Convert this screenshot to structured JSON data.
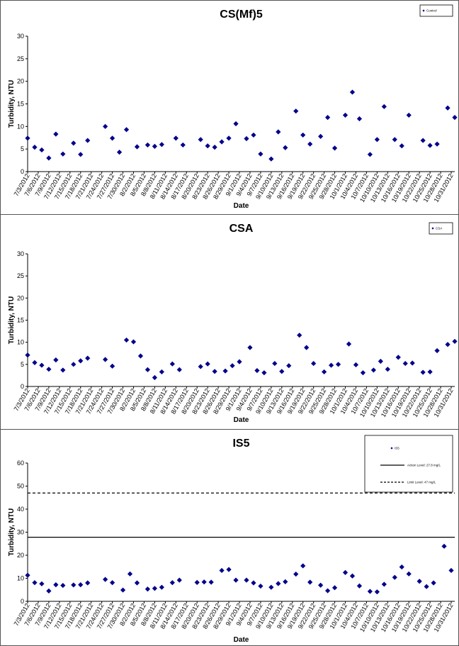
{
  "chart_data": [
    {
      "type": "scatter",
      "title": "CS(Mf)5",
      "xlabel": "Date",
      "ylabel": "Turbidity, NTU",
      "ylim": [
        0,
        30
      ],
      "yticks": [
        0,
        5,
        10,
        15,
        20,
        25,
        30
      ],
      "grid": false,
      "legend_position": "top-right",
      "x_tick_labels": [
        "7/3/2012",
        "7/6/2012",
        "7/9/2012",
        "7/12/2012",
        "7/15/2012",
        "7/18/2012",
        "7/21/2012",
        "7/24/2012",
        "7/27/2012",
        "7/30/2012",
        "8/2/2012",
        "8/5/2012",
        "8/8/2012",
        "8/11/2012",
        "8/14/2012",
        "8/17/2012",
        "8/20/2012",
        "8/23/2012",
        "8/26/2012",
        "8/29/2012",
        "9/1/2012",
        "9/4/2012",
        "9/7/2012",
        "9/10/2012",
        "9/13/2012",
        "9/16/2012",
        "9/19/2012",
        "9/22/2012",
        "9/25/2012",
        "9/28/2012",
        "10/1/2012",
        "10/4/2012",
        "10/7/2012",
        "10/10/2012",
        "10/13/2012",
        "10/16/2012",
        "10/19/2012",
        "10/22/2012",
        "10/25/2012",
        "10/28/2012",
        "10/31/2012"
      ],
      "series": [
        {
          "name": "Control",
          "color": "#00008b",
          "marker": "diamond",
          "x": [
            "7/3/2012",
            "7/5/2012",
            "7/7/2012",
            "7/9/2012",
            "7/11/2012",
            "7/13/2012",
            "7/16/2012",
            "7/18/2012",
            "7/20/2012",
            "7/25/2012",
            "7/27/2012",
            "7/29/2012",
            "7/31/2012",
            "8/3/2012",
            "8/6/2012",
            "8/8/2012",
            "8/10/2012",
            "8/14/2012",
            "8/16/2012",
            "8/21/2012",
            "8/23/2012",
            "8/25/2012",
            "8/27/2012",
            "8/29/2012",
            "8/31/2012",
            "9/3/2012",
            "9/5/2012",
            "9/7/2012",
            "9/10/2012",
            "9/12/2012",
            "9/14/2012",
            "9/17/2012",
            "9/19/2012",
            "9/21/2012",
            "9/24/2012",
            "9/26/2012",
            "9/28/2012",
            "10/1/2012",
            "10/3/2012",
            "10/5/2012",
            "10/8/2012",
            "10/10/2012",
            "10/12/2012",
            "10/15/2012",
            "10/17/2012",
            "10/19/2012",
            "10/23/2012",
            "10/25/2012",
            "10/27/2012",
            "10/30/2012",
            "11/1/2012"
          ],
          "y": [
            7.4,
            5.4,
            4.8,
            3.0,
            8.3,
            3.9,
            6.3,
            3.8,
            6.9,
            10.0,
            7.4,
            4.3,
            9.3,
            5.5,
            5.9,
            5.6,
            6.0,
            7.4,
            5.9,
            7.1,
            5.7,
            5.4,
            6.6,
            7.4,
            10.6,
            7.3,
            8.1,
            3.9,
            2.8,
            8.8,
            5.3,
            13.4,
            8.1,
            6.1,
            7.8,
            12.0,
            5.2,
            12.5,
            17.6,
            11.7,
            3.8,
            7.1,
            14.4,
            7.1,
            5.7,
            12.5,
            6.9,
            5.8,
            6.1,
            14.1,
            12.0
          ]
        }
      ]
    },
    {
      "type": "scatter",
      "title": "CSA",
      "xlabel": "Date",
      "ylabel": "Turbidity, NTU",
      "ylim": [
        0,
        30
      ],
      "yticks": [
        0,
        5,
        10,
        15,
        20,
        25,
        30
      ],
      "grid": false,
      "legend_position": "top-right",
      "x_tick_labels": [
        "7/3/2012",
        "7/6/2012",
        "7/9/2012",
        "7/12/2012",
        "7/15/2012",
        "7/18/2012",
        "7/21/2012",
        "7/24/2012",
        "7/27/2012",
        "7/30/2012",
        "8/2/2012",
        "8/5/2012",
        "8/8/2012",
        "8/11/2012",
        "8/14/2012",
        "8/17/2012",
        "8/20/2012",
        "8/23/2012",
        "8/26/2012",
        "8/29/2012",
        "9/1/2012",
        "9/4/2012",
        "9/7/2012",
        "9/10/2012",
        "9/13/2012",
        "9/16/2012",
        "9/19/2012",
        "9/22/2012",
        "9/25/2012",
        "9/28/2012",
        "10/1/2012",
        "10/4/2012",
        "10/7/2012",
        "10/10/2012",
        "10/13/2012",
        "10/16/2012",
        "10/19/2012",
        "10/22/2012",
        "10/25/2012",
        "10/28/2012",
        "10/31/2012"
      ],
      "series": [
        {
          "name": "CSA",
          "color": "#00008b",
          "marker": "diamond",
          "x": [
            "7/3/2012",
            "7/5/2012",
            "7/7/2012",
            "7/9/2012",
            "7/11/2012",
            "7/13/2012",
            "7/16/2012",
            "7/18/2012",
            "7/20/2012",
            "7/25/2012",
            "7/27/2012",
            "7/31/2012",
            "8/2/2012",
            "8/4/2012",
            "8/6/2012",
            "8/8/2012",
            "8/10/2012",
            "8/13/2012",
            "8/15/2012",
            "8/21/2012",
            "8/23/2012",
            "8/25/2012",
            "8/28/2012",
            "8/30/2012",
            "9/1/2012",
            "9/4/2012",
            "9/6/2012",
            "9/8/2012",
            "9/11/2012",
            "9/13/2012",
            "9/15/2012",
            "9/18/2012",
            "9/20/2012",
            "9/22/2012",
            "9/25/2012",
            "9/27/2012",
            "9/29/2012",
            "10/2/2012",
            "10/4/2012",
            "10/6/2012",
            "10/9/2012",
            "10/11/2012",
            "10/13/2012",
            "10/16/2012",
            "10/18/2012",
            "10/20/2012",
            "10/23/2012",
            "10/25/2012",
            "10/27/2012",
            "10/30/2012",
            "11/1/2012"
          ],
          "y": [
            7.1,
            5.4,
            4.8,
            3.9,
            6.0,
            3.7,
            5.0,
            5.8,
            6.4,
            6.1,
            4.6,
            10.5,
            10.1,
            6.9,
            3.8,
            2.0,
            3.3,
            5.1,
            3.8,
            4.5,
            5.1,
            3.4,
            3.5,
            4.7,
            5.6,
            8.8,
            3.6,
            3.1,
            5.2,
            3.4,
            4.7,
            11.6,
            8.8,
            5.2,
            3.3,
            4.8,
            5.0,
            9.6,
            4.9,
            3.1,
            3.7,
            5.7,
            3.9,
            6.6,
            5.2,
            5.3,
            3.2,
            3.3,
            8.1,
            9.5,
            10.2
          ]
        }
      ]
    },
    {
      "type": "scatter",
      "title": "IS5",
      "xlabel": "Date",
      "ylabel": "Turbidity, NTU",
      "ylim": [
        0,
        60
      ],
      "yticks": [
        0,
        10,
        20,
        30,
        40,
        50,
        60
      ],
      "grid": false,
      "legend_position": "top-right",
      "x_tick_labels": [
        "7/3/2012",
        "7/6/2012",
        "7/9/2012",
        "7/12/2012",
        "7/15/2012",
        "7/18/2012",
        "7/21/2012",
        "7/24/2012",
        "7/27/2012",
        "7/30/2012",
        "8/2/2012",
        "8/5/2012",
        "8/8/2012",
        "8/11/2012",
        "8/14/2012",
        "8/17/2012",
        "8/20/2012",
        "8/23/2012",
        "8/26/2012",
        "8/29/2012",
        "9/1/2012",
        "9/4/2012",
        "9/7/2012",
        "9/10/2012",
        "9/13/2012",
        "9/16/2012",
        "9/19/2012",
        "9/22/2012",
        "9/25/2012",
        "9/28/2012",
        "10/1/2012",
        "10/4/2012",
        "10/7/2012",
        "10/10/2012",
        "10/13/2012",
        "10/16/2012",
        "10/19/2012",
        "10/22/2012",
        "10/25/2012",
        "10/28/2012",
        "10/31/2012"
      ],
      "series": [
        {
          "name": "IS5",
          "color": "#00008b",
          "marker": "diamond",
          "x": [
            "7/3/2012",
            "7/5/2012",
            "7/7/2012",
            "7/9/2012",
            "7/11/2012",
            "7/13/2012",
            "7/16/2012",
            "7/18/2012",
            "7/20/2012",
            "7/25/2012",
            "7/27/2012",
            "7/30/2012",
            "8/1/2012",
            "8/3/2012",
            "8/6/2012",
            "8/8/2012",
            "8/10/2012",
            "8/13/2012",
            "8/15/2012",
            "8/20/2012",
            "8/22/2012",
            "8/24/2012",
            "8/27/2012",
            "8/29/2012",
            "8/31/2012",
            "9/3/2012",
            "9/5/2012",
            "9/7/2012",
            "9/10/2012",
            "9/12/2012",
            "9/14/2012",
            "9/17/2012",
            "9/19/2012",
            "9/21/2012",
            "9/24/2012",
            "9/26/2012",
            "9/28/2012",
            "10/1/2012",
            "10/3/2012",
            "10/5/2012",
            "10/8/2012",
            "10/10/2012",
            "10/12/2012",
            "10/15/2012",
            "10/17/2012",
            "10/19/2012",
            "10/22/2012",
            "10/24/2012",
            "10/26/2012",
            "10/29/2012",
            "10/31/2012"
          ],
          "y": [
            11.3,
            8.1,
            7.6,
            4.5,
            7.2,
            6.9,
            7.1,
            7.2,
            8.0,
            9.5,
            8.1,
            4.9,
            11.9,
            8.0,
            5.3,
            5.6,
            6.1,
            8.1,
            9.2,
            8.2,
            8.4,
            8.3,
            13.4,
            13.8,
            9.2,
            9.2,
            8.0,
            6.6,
            6.1,
            7.7,
            8.5,
            11.8,
            15.4,
            8.3,
            7.0,
            4.6,
            5.9,
            12.5,
            11.0,
            6.7,
            4.3,
            4.1,
            7.4,
            10.4,
            14.9,
            11.9,
            8.7,
            6.4,
            8.0,
            23.9,
            13.4
          ]
        },
        {
          "name": "Action Level: 27.8 mg/L",
          "color": "#000000",
          "line_style": "solid",
          "y_value": 27.8
        },
        {
          "name": "Limit Level: 47 mg/L",
          "color": "#000000",
          "line_style": "dashed",
          "y_value": 47
        }
      ]
    }
  ]
}
